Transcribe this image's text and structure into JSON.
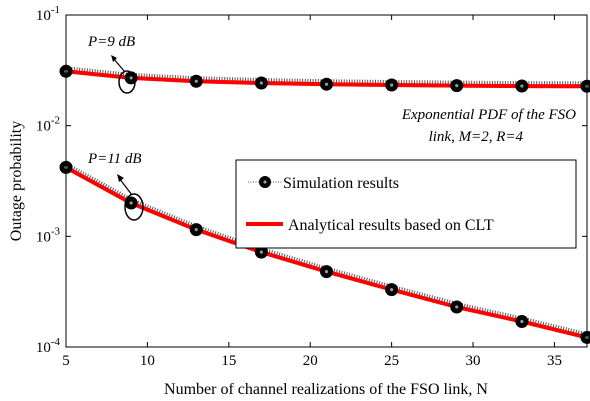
{
  "chart_data": {
    "type": "line",
    "xlabel": "Number of channel realizations of the FSO link, N",
    "ylabel": "Outage probability",
    "xlim": [
      5,
      37
    ],
    "ylim": [
      0.0001,
      0.1
    ],
    "yscale": "log",
    "x_ticks": [
      5,
      10,
      15,
      20,
      25,
      30,
      35
    ],
    "y_ticks": [
      {
        "value": 0.0001,
        "mantissa": "10",
        "exp": "-4"
      },
      {
        "value": 0.001,
        "mantissa": "10",
        "exp": "-3"
      },
      {
        "value": 0.01,
        "mantissa": "10",
        "exp": "-2"
      },
      {
        "value": 0.1,
        "mantissa": "10",
        "exp": "-1"
      }
    ],
    "grid": false,
    "legend_position": "center-right",
    "colors": {
      "analytical": "#ff0000",
      "simulation": "#000000"
    },
    "legend": [
      {
        "label": "Simulation results",
        "marker": "circle"
      },
      {
        "label": "Analytical results based on CLT",
        "marker": "line"
      }
    ],
    "annotations": {
      "p9": "P=9 dB",
      "p11": "P=11 dB",
      "pdf_line1": "Exponential PDF of the FSO",
      "pdf_line2": "link, M=2, R=4"
    },
    "curves": [
      {
        "annotation_key": "p9",
        "simulation": {
          "x": [
            5,
            9,
            13,
            17,
            21,
            25,
            29,
            33,
            37
          ],
          "y": [
            0.031,
            0.027,
            0.0252,
            0.0243,
            0.0237,
            0.0233,
            0.023,
            0.0228,
            0.0227
          ]
        },
        "analytical": {
          "x": [
            5,
            9,
            13,
            17,
            21,
            25,
            29,
            33,
            37
          ],
          "y": [
            0.031,
            0.027,
            0.0252,
            0.0243,
            0.0237,
            0.0233,
            0.023,
            0.0228,
            0.0227
          ]
        }
      },
      {
        "annotation_key": "p11",
        "simulation": {
          "x": [
            5,
            9,
            13,
            17,
            21,
            25,
            29,
            33,
            37
          ],
          "y": [
            0.0042,
            0.002,
            0.00115,
            0.00072,
            0.00048,
            0.00033,
            0.00023,
            0.00017,
            0.000122
          ]
        },
        "analytical": {
          "x": [
            5,
            9,
            13,
            17,
            21,
            25,
            29,
            33,
            37
          ],
          "y": [
            0.0042,
            0.002,
            0.00115,
            0.00072,
            0.00048,
            0.00033,
            0.00023,
            0.00017,
            0.000122
          ]
        }
      }
    ]
  }
}
